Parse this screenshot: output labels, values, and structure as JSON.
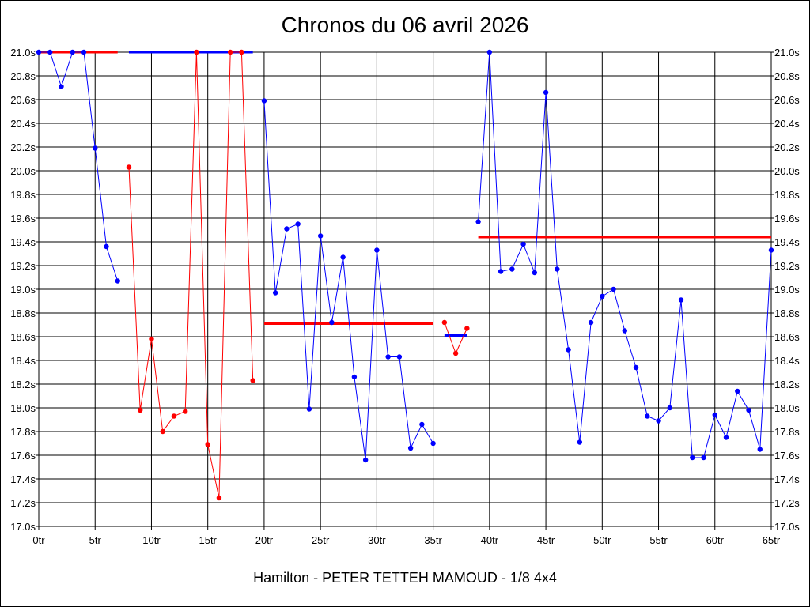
{
  "chart_data": {
    "type": "line",
    "title": "Chronos du 06 avril 2026",
    "subtitle": "Hamilton - PETER TETTEH MAMOUD - 1/8 4x4",
    "xlim": [
      0,
      65
    ],
    "ylim": [
      17.0,
      21.0
    ],
    "x_ticks": [
      {
        "value": 0,
        "label": "0tr"
      },
      {
        "value": 5,
        "label": "5tr"
      },
      {
        "value": 10,
        "label": "10tr"
      },
      {
        "value": 15,
        "label": "15tr"
      },
      {
        "value": 20,
        "label": "20tr"
      },
      {
        "value": 25,
        "label": "25tr"
      },
      {
        "value": 30,
        "label": "30tr"
      },
      {
        "value": 35,
        "label": "35tr"
      },
      {
        "value": 40,
        "label": "40tr"
      },
      {
        "value": 45,
        "label": "45tr"
      },
      {
        "value": 50,
        "label": "50tr"
      },
      {
        "value": 55,
        "label": "55tr"
      },
      {
        "value": 60,
        "label": "60tr"
      },
      {
        "value": 65,
        "label": "65tr"
      }
    ],
    "y_ticks": [
      {
        "value": 21.0,
        "label": "21.0s"
      },
      {
        "value": 20.8,
        "label": "20.8s"
      },
      {
        "value": 20.6,
        "label": "20.6s"
      },
      {
        "value": 20.4,
        "label": "20.4s"
      },
      {
        "value": 20.2,
        "label": "20.2s"
      },
      {
        "value": 20.0,
        "label": "20.0s"
      },
      {
        "value": 19.8,
        "label": "19.8s"
      },
      {
        "value": 19.6,
        "label": "19.6s"
      },
      {
        "value": 19.4,
        "label": "19.4s"
      },
      {
        "value": 19.2,
        "label": "19.2s"
      },
      {
        "value": 19.0,
        "label": "19.0s"
      },
      {
        "value": 18.8,
        "label": "18.8s"
      },
      {
        "value": 18.6,
        "label": "18.6s"
      },
      {
        "value": 18.4,
        "label": "18.4s"
      },
      {
        "value": 18.2,
        "label": "18.2s"
      },
      {
        "value": 18.0,
        "label": "18.0s"
      },
      {
        "value": 17.8,
        "label": "17.8s"
      },
      {
        "value": 17.6,
        "label": "17.6s"
      },
      {
        "value": 17.4,
        "label": "17.4s"
      },
      {
        "value": 17.2,
        "label": "17.2s"
      },
      {
        "value": 17.0,
        "label": "17.0s"
      }
    ],
    "grid": true,
    "series": [
      {
        "color": "#0000ff",
        "points": [
          [
            0,
            21.0
          ],
          [
            1,
            21.0
          ],
          [
            2,
            20.71
          ],
          [
            3,
            21.0
          ],
          [
            4,
            21.0
          ],
          [
            5,
            20.19
          ],
          [
            6,
            19.36
          ],
          [
            7,
            19.07
          ]
        ]
      },
      {
        "color": "#ff0000",
        "points": [
          [
            8,
            20.03
          ],
          [
            9,
            17.98
          ],
          [
            10,
            18.58
          ],
          [
            11,
            17.8
          ],
          [
            12,
            17.93
          ],
          [
            13,
            17.97
          ],
          [
            14,
            21.0
          ],
          [
            15,
            17.69
          ],
          [
            16,
            17.24
          ],
          [
            17,
            21.0
          ],
          [
            18,
            21.0
          ],
          [
            19,
            18.23
          ]
        ]
      },
      {
        "color": "#0000ff",
        "points": [
          [
            20,
            20.59
          ],
          [
            21,
            18.97
          ],
          [
            22,
            19.51
          ],
          [
            23,
            19.55
          ],
          [
            24,
            17.99
          ],
          [
            25,
            19.45
          ],
          [
            26,
            18.72
          ],
          [
            27,
            19.27
          ],
          [
            28,
            18.26
          ],
          [
            29,
            17.56
          ],
          [
            30,
            19.33
          ],
          [
            31,
            18.43
          ],
          [
            32,
            18.43
          ],
          [
            33,
            17.66
          ],
          [
            34,
            17.86
          ],
          [
            35,
            17.7
          ]
        ]
      },
      {
        "color": "#ff0000",
        "points": [
          [
            36,
            18.72
          ],
          [
            37,
            18.46
          ],
          [
            38,
            18.67
          ]
        ]
      },
      {
        "color": "#0000ff",
        "points": [
          [
            39,
            19.57
          ],
          [
            40,
            21.0
          ],
          [
            41,
            19.15
          ],
          [
            42,
            19.17
          ],
          [
            43,
            19.38
          ],
          [
            44,
            19.14
          ],
          [
            45,
            20.66
          ],
          [
            46,
            19.17
          ],
          [
            47,
            18.49
          ],
          [
            48,
            17.71
          ],
          [
            49,
            18.72
          ],
          [
            50,
            18.94
          ],
          [
            51,
            19.0
          ],
          [
            52,
            18.65
          ],
          [
            53,
            18.34
          ],
          [
            54,
            17.93
          ],
          [
            55,
            17.89
          ],
          [
            56,
            18.0
          ],
          [
            57,
            18.91
          ],
          [
            58,
            17.58
          ],
          [
            59,
            17.58
          ],
          [
            60,
            17.94
          ],
          [
            61,
            17.75
          ],
          [
            62,
            18.14
          ],
          [
            63,
            17.98
          ],
          [
            64,
            17.65
          ],
          [
            65,
            19.33
          ]
        ]
      }
    ],
    "reference_lines": [
      {
        "color": "#ff0000",
        "x": [
          0,
          7
        ],
        "y": 21.0
      },
      {
        "color": "#0000ff",
        "x": [
          8,
          19
        ],
        "y": 21.0
      },
      {
        "color": "#ff0000",
        "x": [
          20,
          35
        ],
        "y": 18.71
      },
      {
        "color": "#0000ff",
        "x": [
          36,
          38
        ],
        "y": 18.61
      },
      {
        "color": "#ff0000",
        "x": [
          39,
          65
        ],
        "y": 19.44
      }
    ]
  }
}
